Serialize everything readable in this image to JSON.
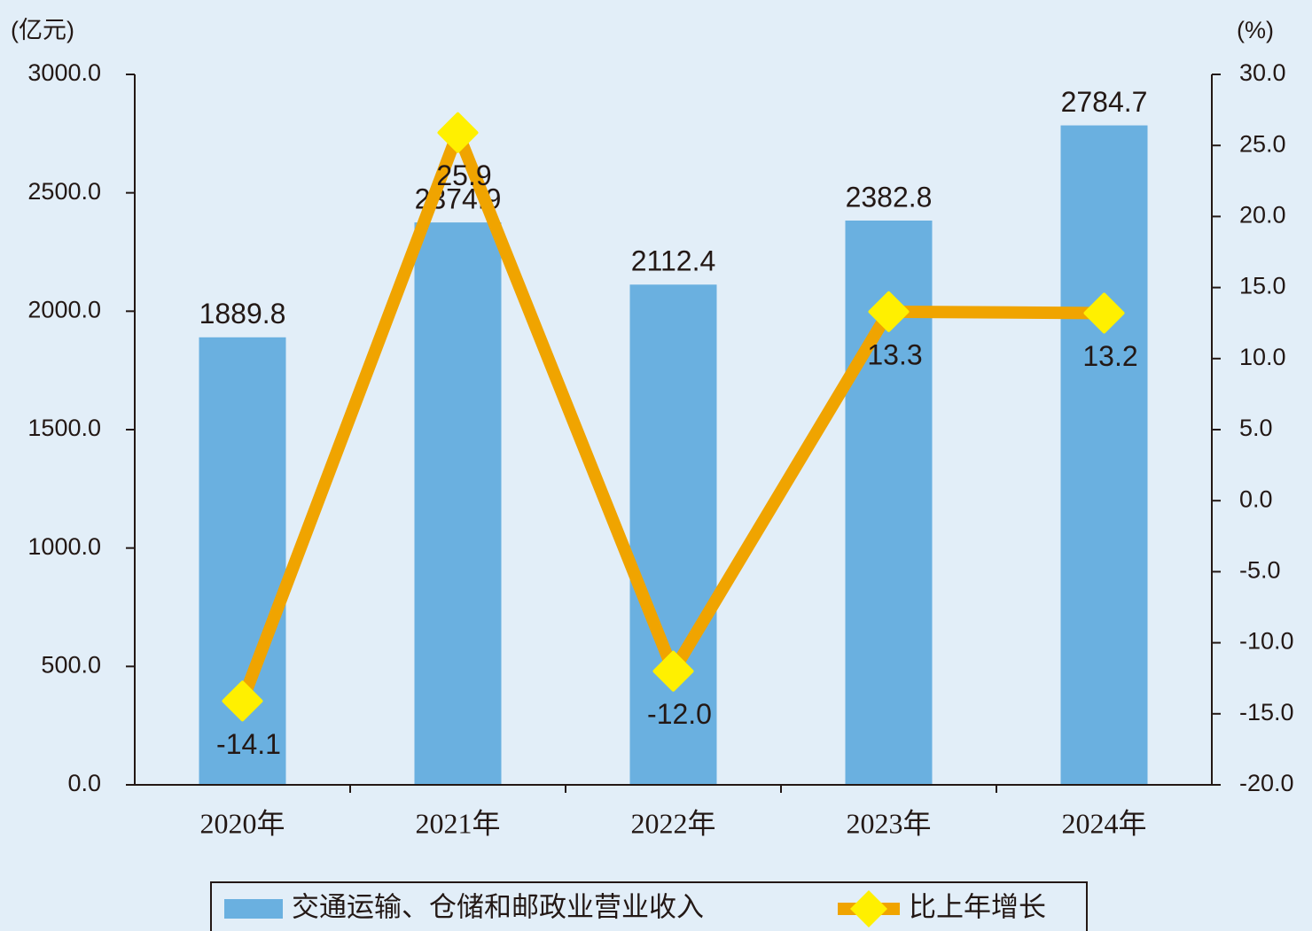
{
  "chart_data": {
    "type": "bar",
    "y_label": "(亿元)",
    "y2_label": "(%)",
    "categories": [
      "2020年",
      "2021年",
      "2022年",
      "2023年",
      "2024年"
    ],
    "series": [
      {
        "name": "交通运输、仓储和邮政业营业收入",
        "type": "bar",
        "color": "#6ab0e0",
        "values": [
          1889.8,
          2374.9,
          2112.4,
          2382.8,
          2784.7
        ]
      },
      {
        "name": "比上年增长",
        "type": "line",
        "axis": "y2",
        "color": "#f0a400",
        "marker_color": "#fff000",
        "values": [
          -14.1,
          25.9,
          -12.0,
          13.3,
          13.2
        ],
        "value_labels": [
          "-14.1",
          "25.9",
          "-12.0",
          "13.3",
          "13.2"
        ]
      }
    ],
    "ylim": [
      0,
      3000
    ],
    "yticks": [
      {
        "value": 0,
        "label": "0.0"
      },
      {
        "value": 500,
        "label": "500.0"
      },
      {
        "value": 1000,
        "label": "1000.0"
      },
      {
        "value": 1500,
        "label": "1500.0"
      },
      {
        "value": 2000,
        "label": "2000.0"
      },
      {
        "value": 2500,
        "label": "2500.0"
      },
      {
        "value": 3000,
        "label": "3000.0"
      }
    ],
    "y2lim": [
      -20,
      30
    ],
    "y2ticks": [
      {
        "value": -20,
        "label": "-20.0"
      },
      {
        "value": -15,
        "label": "-15.0"
      },
      {
        "value": -10,
        "label": "-10.0"
      },
      {
        "value": -5,
        "label": "-5.0"
      },
      {
        "value": 0,
        "label": "0.0"
      },
      {
        "value": 5,
        "label": "5.0"
      },
      {
        "value": 10,
        "label": "10.0"
      },
      {
        "value": 15,
        "label": "15.0"
      },
      {
        "value": 20,
        "label": "20.0"
      },
      {
        "value": 25,
        "label": "25.0"
      },
      {
        "value": 30,
        "label": "30.0"
      }
    ],
    "grid": false,
    "legend": "bottom"
  }
}
